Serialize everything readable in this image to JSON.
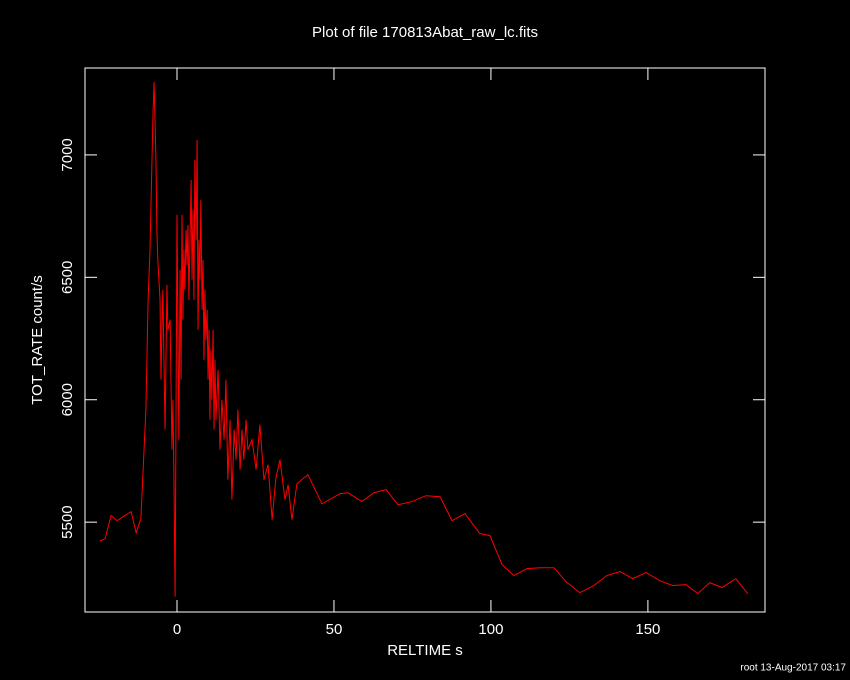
{
  "chart_data": {
    "type": "line",
    "title": "Plot of file 170813Abat_raw_lc.fits",
    "x_label": "RELTIME  s",
    "y_label": "TOT_RATE  count/s",
    "footer": "root 13-Aug-2017 03:17",
    "xlim": [
      -29.3,
      187.3
    ],
    "ylim": [
      5133,
      7355
    ],
    "xticks": [
      0,
      50,
      100,
      150
    ],
    "yticks": [
      5500,
      6000,
      6500,
      7000
    ],
    "x": [
      -24.5,
      -22.9,
      -21,
      -19.1,
      -14.6,
      -13,
      -11.5,
      -9.9,
      -9.2,
      -8.6,
      -8,
      -7.6,
      -7.3,
      -6.7,
      -6.4,
      -6.1,
      -5.4,
      -5.1,
      -4.8,
      -4.5,
      -3.8,
      -3.2,
      -2.9,
      -2.2,
      -1.6,
      -1.3,
      -1,
      -0.6,
      -0.3,
      0,
      0.6,
      1,
      1.3,
      1.6,
      1.9,
      2.2,
      2.5,
      2.9,
      3.2,
      3.5,
      3.8,
      4.1,
      4.5,
      4.8,
      5.1,
      5.4,
      5.7,
      6.1,
      6.4,
      6.7,
      7,
      7.3,
      7.6,
      8,
      8.3,
      8.6,
      8.9,
      9.2,
      9.6,
      9.9,
      10.2,
      10.5,
      10.8,
      11.1,
      11.5,
      11.8,
      12.1,
      12.4,
      13.1,
      13.7,
      14.3,
      15,
      15.6,
      16.2,
      16.9,
      17.5,
      18.2,
      18.8,
      19.4,
      20.1,
      20.7,
      21.3,
      22,
      22.6,
      23.9,
      25.2,
      26.4,
      27.7,
      29,
      30.3,
      31.5,
      32.8,
      34.4,
      35.4,
      36.6,
      38.2,
      41.7,
      46.2,
      51.9,
      54.5,
      58.9,
      62.7,
      66.6,
      70.4,
      74.8,
      79.3,
      83.8,
      87.6,
      91.7,
      96.5,
      99.7,
      103.5,
      107.3,
      111.5,
      115.6,
      120.1,
      123.9,
      128.3,
      132.8,
      136.9,
      141.1,
      145.2,
      149.4,
      153.8,
      158,
      162.1,
      165.9,
      169.7,
      173.6,
      178,
      181.8
    ],
    "series": [
      {
        "name": "TOT_RATE",
        "color": "#ff0000",
        "values": [
          5424,
          5432,
          5527,
          5506,
          5543,
          5457,
          5514,
          5960,
          6408,
          6612,
          6959,
          7184,
          7298,
          6980,
          6694,
          6571,
          6408,
          6082,
          6286,
          6449,
          5878,
          6469,
          6286,
          6327,
          5796,
          6000,
          5714,
          5196,
          5959,
          6755,
          5837,
          6531,
          6082,
          6755,
          6327,
          6612,
          6449,
          6694,
          6551,
          6714,
          6408,
          6612,
          6898,
          6490,
          6776,
          6408,
          6980,
          6653,
          7061,
          6286,
          6653,
          6490,
          6816,
          6367,
          6571,
          6163,
          6449,
          6245,
          6367,
          6082,
          6286,
          5918,
          6204,
          6000,
          6286,
          5878,
          6163,
          5918,
          6122,
          5796,
          6000,
          5837,
          6082,
          5673,
          5918,
          5592,
          5878,
          5755,
          5959,
          5714,
          5878,
          5755,
          5918,
          5796,
          5837,
          5714,
          5898,
          5673,
          5735,
          5510,
          5680,
          5755,
          5592,
          5653,
          5510,
          5657,
          5694,
          5575,
          5616,
          5620,
          5584,
          5620,
          5633,
          5571,
          5584,
          5608,
          5604,
          5506,
          5535,
          5453,
          5445,
          5327,
          5282,
          5310,
          5314,
          5314,
          5257,
          5212,
          5241,
          5282,
          5298,
          5269,
          5294,
          5261,
          5241,
          5245,
          5208,
          5253,
          5233,
          5269,
          5208
        ]
      }
    ]
  }
}
